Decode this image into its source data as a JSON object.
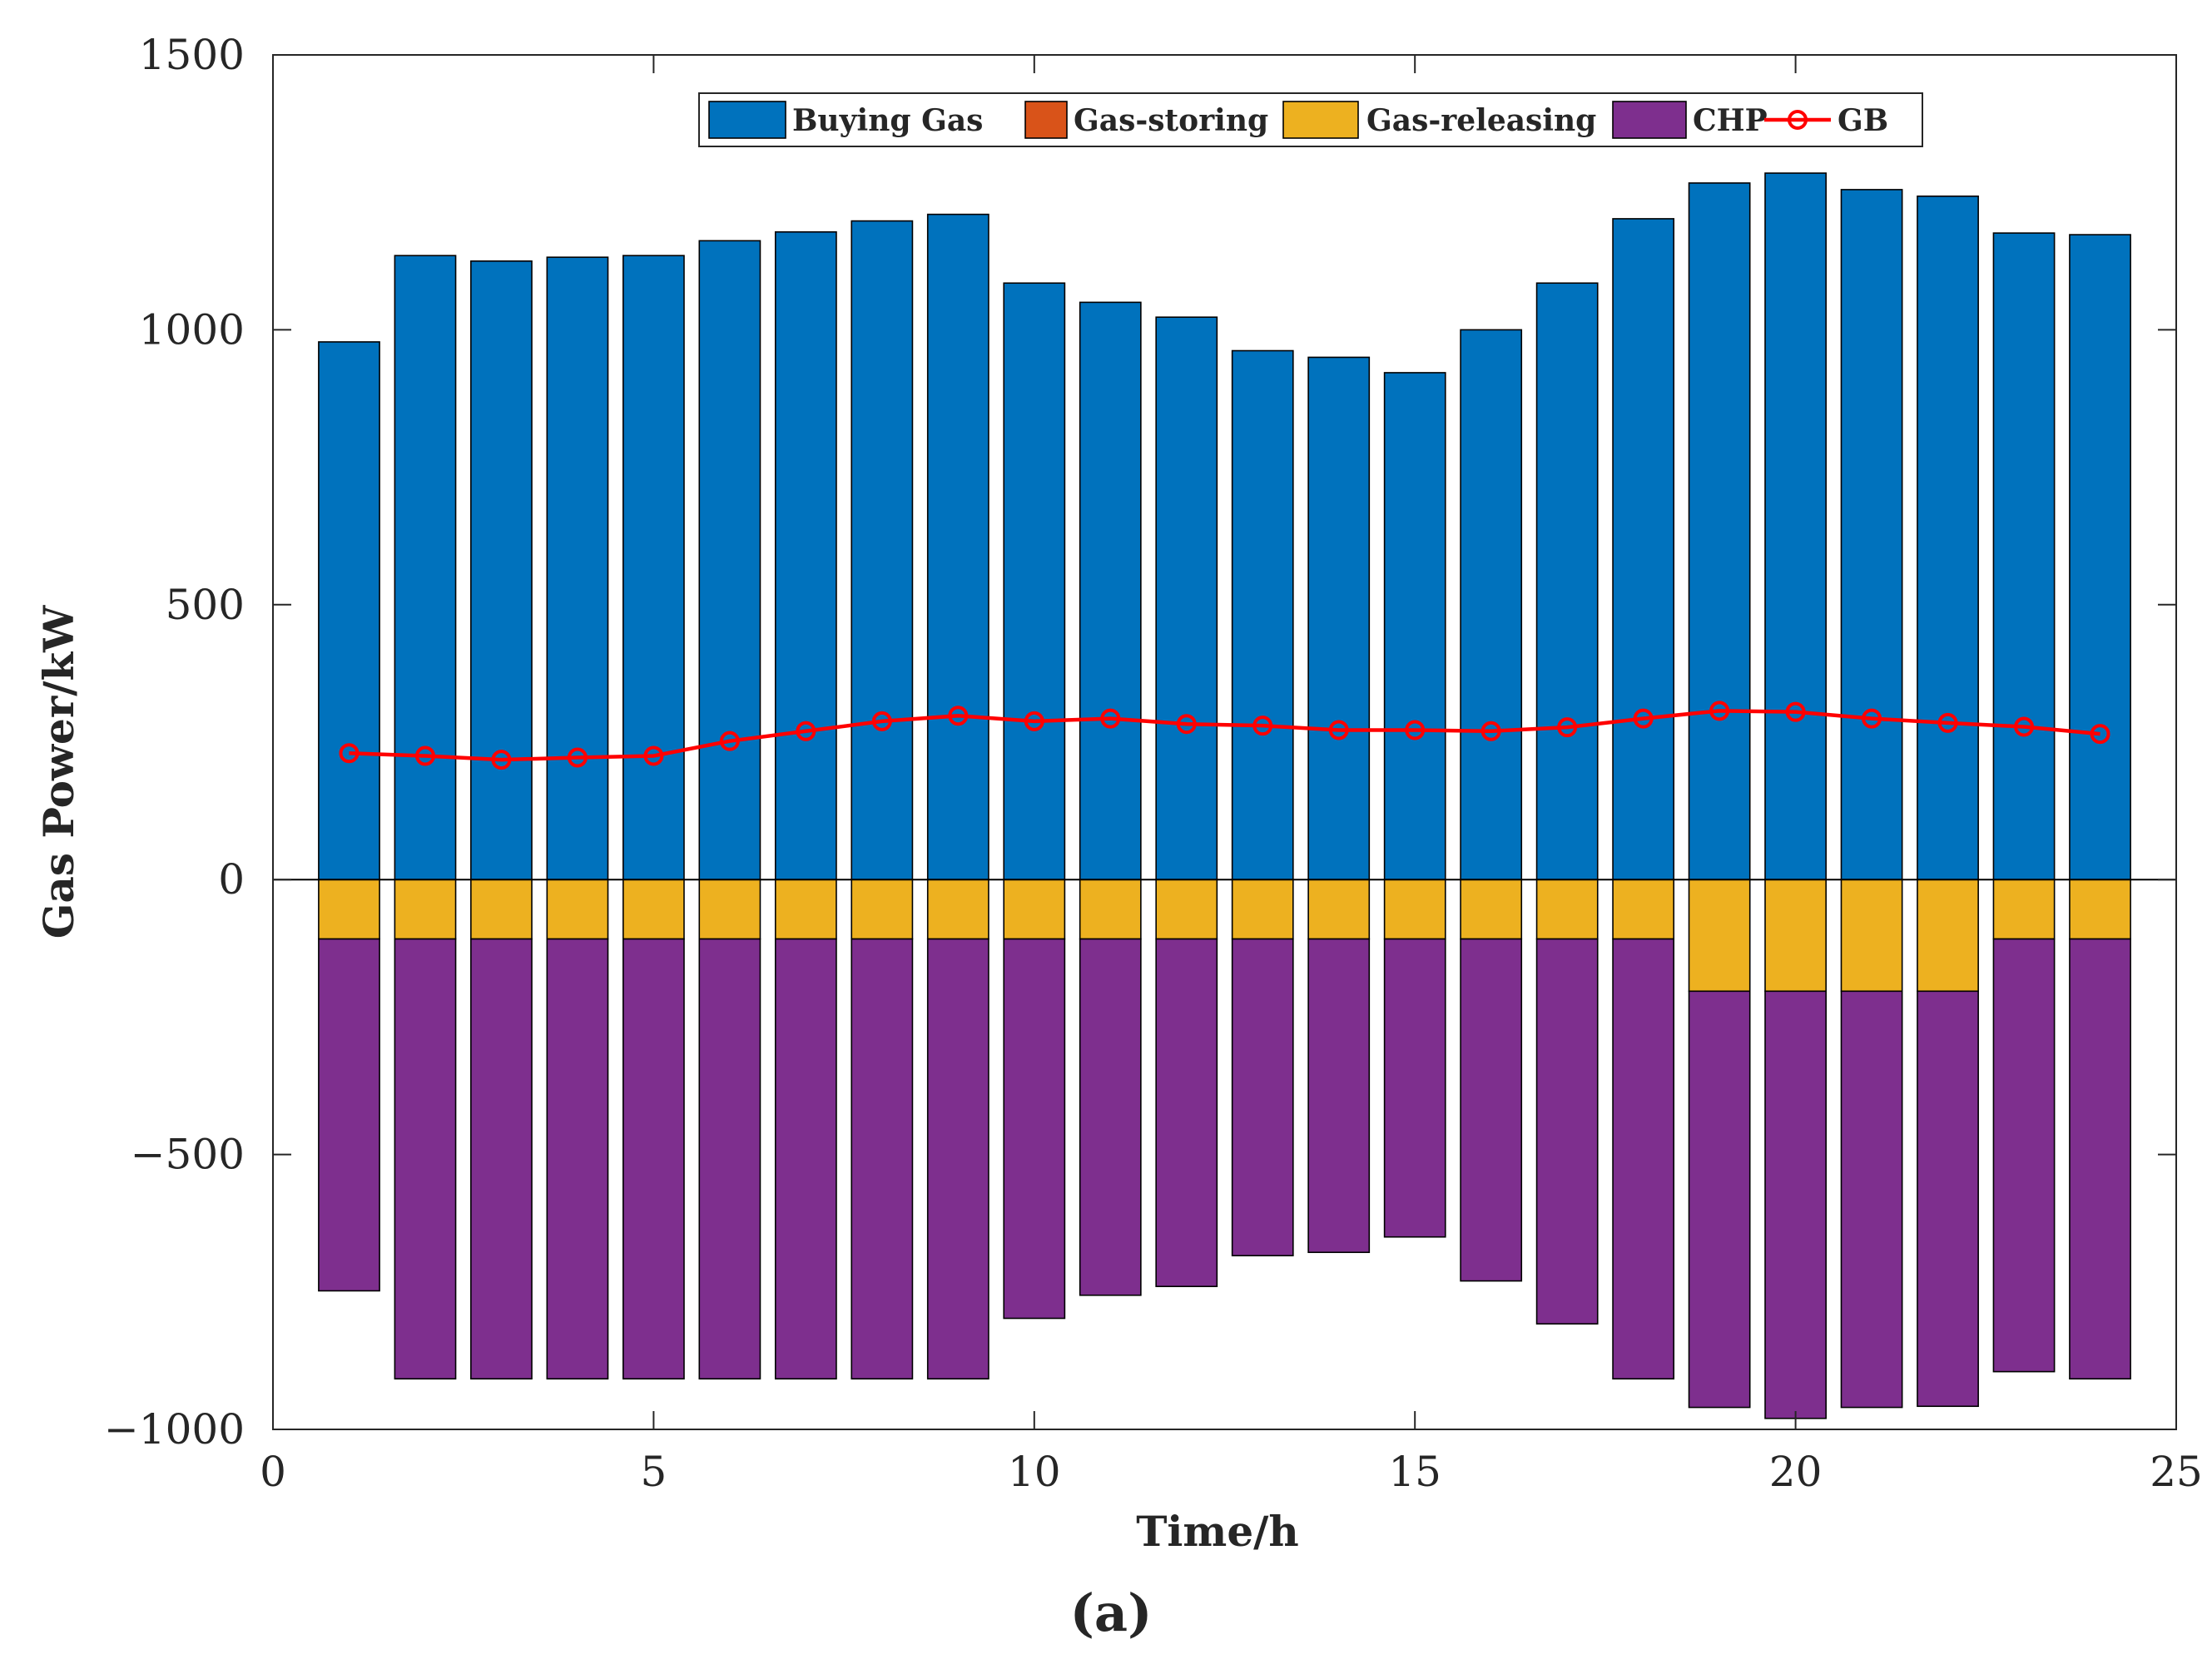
{
  "chart_data": {
    "type": "bar",
    "stacked": true,
    "ylabel": "Gas Power/kW",
    "xlabel": "Time/h",
    "panel_label": "(a)",
    "xlim": [
      0,
      25
    ],
    "ylim": [
      -1000,
      1500
    ],
    "x_ticks": [
      0,
      5,
      10,
      15,
      20,
      25
    ],
    "x_tick_labels": [
      "0",
      "5",
      "10",
      "15",
      "20",
      "25"
    ],
    "y_ticks": [
      -1000,
      -500,
      0,
      500,
      1000,
      1500
    ],
    "y_tick_labels": [
      "−1000",
      "−500",
      "0",
      "500",
      "1000",
      "1500"
    ],
    "x": [
      1,
      2,
      3,
      4,
      5,
      6,
      7,
      8,
      9,
      10,
      11,
      12,
      13,
      14,
      15,
      16,
      17,
      18,
      19,
      20,
      21,
      22,
      23,
      24
    ],
    "legend_position": "top-center",
    "series": [
      {
        "name": "Buying Gas",
        "kind": "bar",
        "color": "#0072BD",
        "values": [
          978,
          1135,
          1125,
          1132,
          1135,
          1162,
          1178,
          1198,
          1210,
          1085,
          1050,
          1023,
          962,
          950,
          922,
          1000,
          1085,
          1202,
          1267,
          1285,
          1255,
          1243,
          1176,
          1173
        ]
      },
      {
        "name": "Gas-storing",
        "kind": "bar",
        "color": "#D95319",
        "values": [
          0,
          0,
          0,
          0,
          0,
          0,
          0,
          0,
          0,
          0,
          0,
          0,
          0,
          0,
          0,
          0,
          0,
          0,
          0,
          0,
          0,
          0,
          0,
          0
        ]
      },
      {
        "name": "Gas-releasing",
        "kind": "bar",
        "color": "#EDB120",
        "values": [
          -108,
          -108,
          -108,
          -108,
          -108,
          -108,
          -108,
          -108,
          -108,
          -108,
          -108,
          -108,
          -108,
          -108,
          -108,
          -108,
          -108,
          -108,
          -203,
          -203,
          -203,
          -203,
          -108,
          -108
        ]
      },
      {
        "name": "CHP",
        "kind": "bar",
        "color": "#7E2F8E",
        "values": [
          -640,
          -800,
          -800,
          -800,
          -800,
          -800,
          -800,
          -800,
          -800,
          -690,
          -648,
          -632,
          -576,
          -570,
          -542,
          -622,
          -700,
          -800,
          -757,
          -777,
          -757,
          -755,
          -787,
          -800
        ]
      },
      {
        "name": "GB",
        "kind": "line",
        "color": "#FF0000",
        "values": [
          230,
          225,
          218,
          222,
          225,
          252,
          270,
          288,
          298,
          288,
          293,
          283,
          280,
          272,
          272,
          270,
          277,
          293,
          307,
          305,
          293,
          285,
          278,
          265
        ]
      }
    ]
  }
}
